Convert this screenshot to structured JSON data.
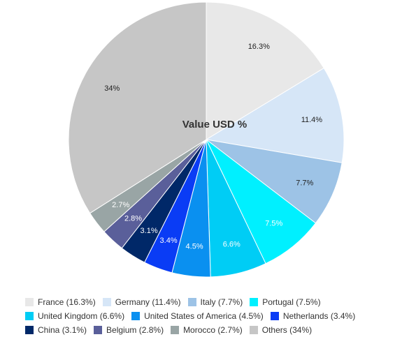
{
  "chart_data": {
    "type": "pie",
    "title": "Value USD %",
    "legend_position": "bottom",
    "slices": [
      {
        "name": "France",
        "value": 16.3,
        "label": "16.3%",
        "legend": "France (16.3%)",
        "color": "#e8e8e8"
      },
      {
        "name": "Germany",
        "value": 11.4,
        "label": "11.4%",
        "legend": "Germany (11.4%)",
        "color": "#d6e6f7"
      },
      {
        "name": "Italy",
        "value": 7.7,
        "label": "7.7%",
        "legend": "Italy (7.7%)",
        "color": "#9dc3e6"
      },
      {
        "name": "Portugal",
        "value": 7.5,
        "label": "7.5%",
        "legend": "Portugal (7.5%)",
        "color": "#00f0ff"
      },
      {
        "name": "United Kingdom",
        "value": 6.6,
        "label": "6.6%",
        "legend": "United Kingdom (6.6%)",
        "color": "#00cdf5"
      },
      {
        "name": "United States of America",
        "value": 4.5,
        "label": "4.5%",
        "legend": "United States of America (4.5%)",
        "color": "#0a90f0"
      },
      {
        "name": "Netherlands",
        "value": 3.4,
        "label": "3.4%",
        "legend": "Netherlands (3.4%)",
        "color": "#0a3cf5"
      },
      {
        "name": "China",
        "value": 3.1,
        "label": "3.1%",
        "legend": "China (3.1%)",
        "color": "#002868"
      },
      {
        "name": "Belgium",
        "value": 2.8,
        "label": "2.8%",
        "legend": "Belgium (2.8%)",
        "color": "#5a5f9a"
      },
      {
        "name": "Morocco",
        "value": 2.7,
        "label": "2.7%",
        "legend": "Morocco (2.7%)",
        "color": "#99a5a5"
      },
      {
        "name": "Others",
        "value": 34,
        "label": "34%",
        "legend": "Others (34%)",
        "color": "#c6c6c6"
      }
    ],
    "label_colors": {
      "France": "#222222",
      "Germany": "#222222",
      "Italy": "#222222",
      "Portugal": "#ffffff",
      "United Kingdom": "#ffffff",
      "United States of America": "#ffffff",
      "Netherlands": "#ffffff",
      "China": "#ffffff",
      "Belgium": "#ffffff",
      "Morocco": "#ffffff",
      "Others": "#222222"
    }
  }
}
